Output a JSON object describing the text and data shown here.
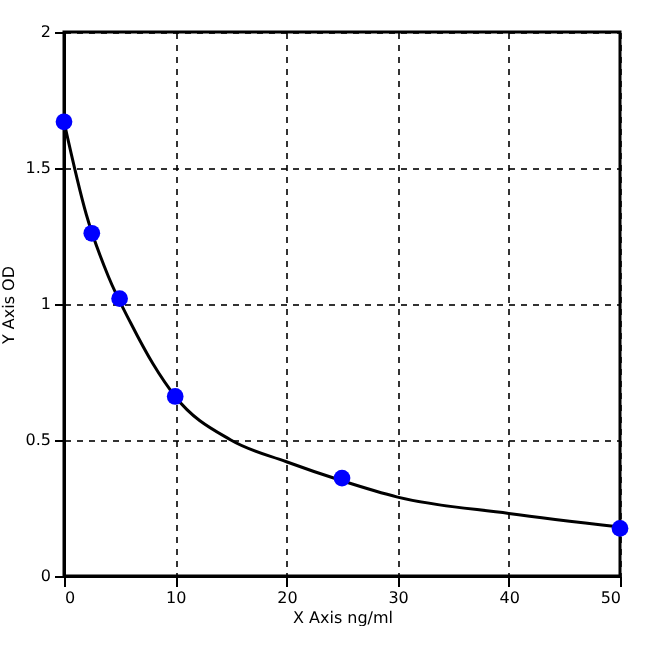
{
  "chart_data": {
    "type": "scatter",
    "xlabel": "X  Axis ng/ml",
    "ylabel": "Y  Axis OD",
    "xlim": [
      0,
      50
    ],
    "ylim": [
      0,
      2
    ],
    "xticks": [
      0,
      10,
      20,
      30,
      40,
      50
    ],
    "yticks": [
      0,
      0.5,
      1,
      1.5,
      2
    ],
    "grid": true,
    "marker": "circle",
    "series": [
      {
        "type": "line",
        "color": "#000000",
        "line_style": "solid",
        "marker": "none",
        "x": [
          0,
          2,
          4,
          6,
          8,
          10,
          15,
          20,
          25,
          30,
          40,
          50
        ],
        "values": [
          1.67,
          1.33,
          1.1,
          0.93,
          0.78,
          0.66,
          0.5,
          0.42,
          0.35,
          0.29,
          0.23,
          0.18
        ]
      },
      {
        "color": "#0000ff",
        "x": [
          0,
          2.5,
          5,
          10,
          25,
          50
        ],
        "values": [
          1.67,
          1.26,
          1.02,
          0.66,
          0.36,
          0.175
        ]
      }
    ]
  }
}
